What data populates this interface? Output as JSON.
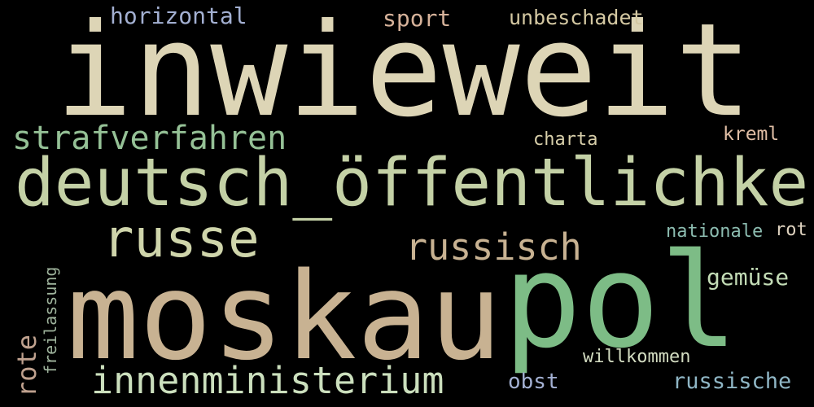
{
  "words": [
    {
      "id": "inwieweit",
      "text": "inwieweit",
      "color": "#ddd5b6"
    },
    {
      "id": "moskau",
      "text": "moskau",
      "color": "#c8b292"
    },
    {
      "id": "pol",
      "text": "pol",
      "color": "#7dbc86"
    },
    {
      "id": "deutsch-oeffentlichkeit",
      "text": "deutsch_öffentlichkeit",
      "color": "#c4d1a6"
    },
    {
      "id": "russe",
      "text": "russe",
      "color": "#cfd5ab"
    },
    {
      "id": "russisch",
      "text": "russisch",
      "color": "#c8b292"
    },
    {
      "id": "innenministerium",
      "text": "innenministerium",
      "color": "#cbdfbd"
    },
    {
      "id": "strafverfahren",
      "text": "strafverfahren",
      "color": "#95c196"
    },
    {
      "id": "horizontal",
      "text": "horizontal",
      "color": "#a3b0d2"
    },
    {
      "id": "sport",
      "text": "sport",
      "color": "#d6b29a"
    },
    {
      "id": "unbeschadet",
      "text": "unbeschadet",
      "color": "#d4c8a2"
    },
    {
      "id": "charta",
      "text": "charta",
      "color": "#d8cfaa"
    },
    {
      "id": "kreml",
      "text": "kreml",
      "color": "#e0bea5"
    },
    {
      "id": "nationale",
      "text": "nationale",
      "color": "#8cbcb0"
    },
    {
      "id": "rot",
      "text": "rot",
      "color": "#dfd3c0"
    },
    {
      "id": "gemuese",
      "text": "gemüse",
      "color": "#c3dcb6"
    },
    {
      "id": "willkommen",
      "text": "willkommen",
      "color": "#d3dcc1"
    },
    {
      "id": "obst",
      "text": "obst",
      "color": "#a3b0d2"
    },
    {
      "id": "russische",
      "text": "russische",
      "color": "#8fb6c5"
    },
    {
      "id": "rote",
      "text": "rote",
      "color": "#bfa18e"
    },
    {
      "id": "freilassung",
      "text": "freilassung",
      "color": "#9fb49d"
    }
  ]
}
